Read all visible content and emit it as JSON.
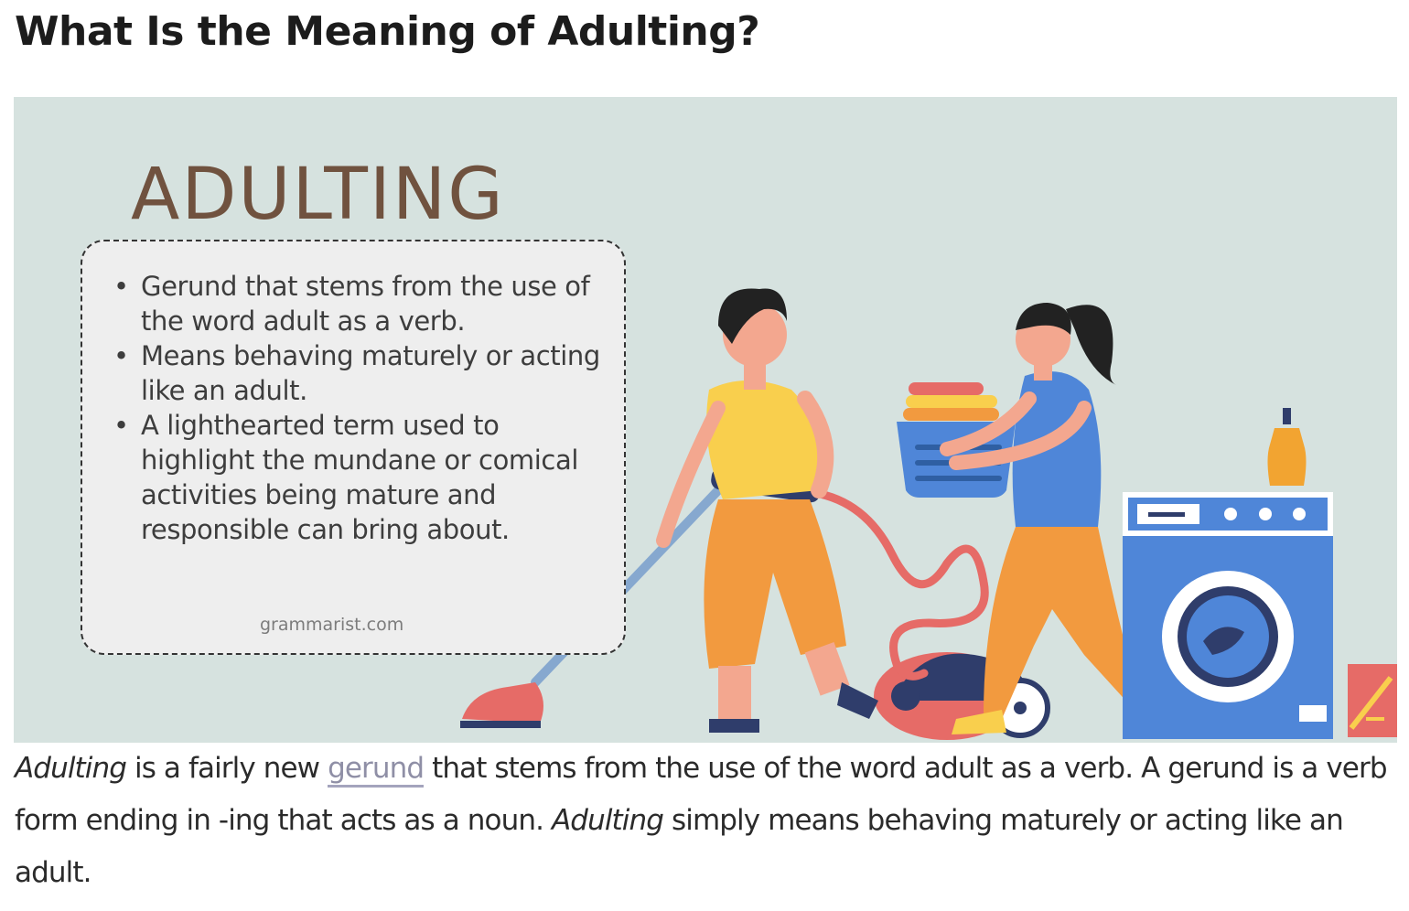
{
  "article": {
    "title": "What Is the Meaning of Adulting?"
  },
  "infographic": {
    "heading": "ADULTING",
    "bullets": [
      "Gerund that stems from the use of the word adult as a verb.",
      "Means behaving maturely or acting like an adult.",
      "A lighthearted term used to highlight the mundane or comical activities being mature and responsible can bring about."
    ],
    "credit": "grammarist.com",
    "background_color": "#d6e2df",
    "heading_color": "#70523f"
  },
  "paragraph": {
    "term_1": "Adulting",
    "text_1": " is a fairly new ",
    "link_text": "gerund",
    "text_2": " that stems from the use of the word adult as a verb. A gerund is a verb form ending in -ing that acts as a noun. ",
    "term_2": "Adulting",
    "text_3": " simply means behaving maturely or acting like an adult."
  }
}
